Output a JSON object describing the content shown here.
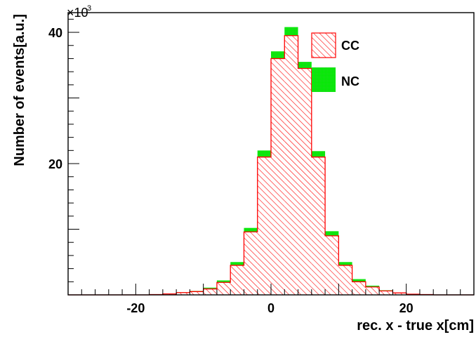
{
  "chart_data": {
    "type": "bar",
    "title": "",
    "xlabel": "rec. x - true x[cm]",
    "ylabel": "Number of events[a.u.]",
    "y_multiplier": "×10",
    "y_multiplier_exp": "3",
    "xlim": [
      -30,
      30
    ],
    "ylim": [
      0,
      43
    ],
    "x_ticks": [
      -20,
      0,
      20
    ],
    "y_ticks": [
      20,
      40
    ],
    "bin_width": 2,
    "bin_edges": [
      -30,
      -28,
      -26,
      -24,
      -22,
      -20,
      -18,
      -16,
      -14,
      -12,
      -10,
      -8,
      -6,
      -4,
      -2,
      0,
      2,
      4,
      6,
      8,
      10,
      12,
      14,
      16,
      18,
      20,
      22,
      24,
      26,
      28,
      30
    ],
    "series": [
      {
        "name": "CC",
        "color": "#ff0000",
        "fill": "hatched",
        "values": [
          0,
          0,
          0,
          0,
          0,
          0,
          0.05,
          0.15,
          0.35,
          0.5,
          0.9,
          1.9,
          4.5,
          9.6,
          21.0,
          36.0,
          39.5,
          34.5,
          21.0,
          9.0,
          4.5,
          2.0,
          1.2,
          0.6,
          0.3,
          0.1,
          0.05,
          0,
          0,
          0
        ]
      },
      {
        "name": "NC",
        "color": "#00ee00",
        "fill": "solid",
        "values": [
          0,
          0,
          0,
          0,
          0,
          0,
          0,
          0.02,
          0.05,
          0.1,
          0.2,
          0.3,
          0.5,
          0.6,
          1.0,
          1.1,
          1.3,
          1.0,
          0.9,
          0.7,
          0.5,
          0.4,
          0.2,
          0.1,
          0.05,
          0.02,
          0,
          0,
          0,
          0
        ]
      }
    ],
    "legend": {
      "placement": "top-right",
      "entries": [
        {
          "label": "CC",
          "color": "#ff0000",
          "fill": "hatched"
        },
        {
          "label": "NC",
          "color": "#00ee00",
          "fill": "solid"
        }
      ]
    }
  }
}
